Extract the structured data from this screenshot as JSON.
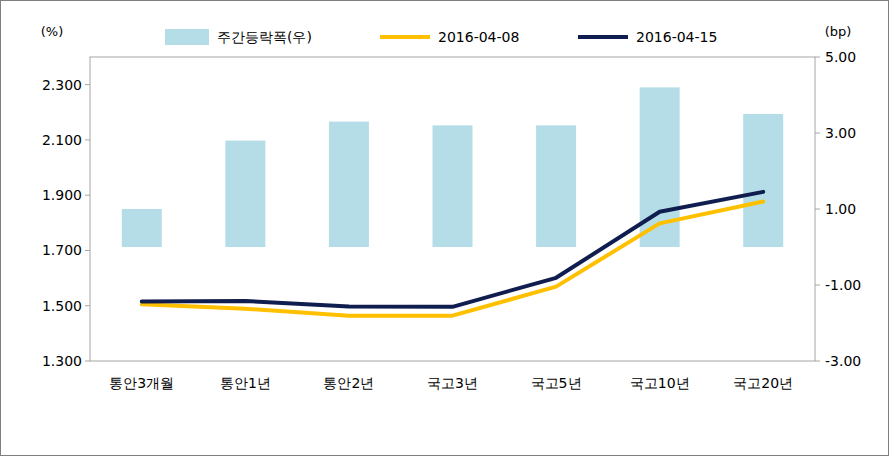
{
  "chart_data": {
    "type": "bar",
    "ylabel": "(%)",
    "y2label": "(bp)",
    "categories": [
      "통안3개월",
      "통안1년",
      "통안2년",
      "국고3년",
      "국고5년",
      "국고10년",
      "국고20년"
    ],
    "series": [
      {
        "name": "주간등락폭(우)",
        "type": "bar",
        "axis": "y2",
        "color": "#b4dde8",
        "values": [
          1.0,
          2.8,
          3.3,
          3.2,
          3.2,
          4.2,
          3.5
        ]
      },
      {
        "name": "2016-04-08",
        "type": "line",
        "color": "#ffc000",
        "values": [
          1.505,
          1.489,
          1.464,
          1.464,
          1.569,
          1.798,
          1.877
        ]
      },
      {
        "name": "2016-04-15",
        "type": "line",
        "color": "#0f1e4f",
        "values": [
          1.515,
          1.517,
          1.497,
          1.496,
          1.601,
          1.84,
          1.912
        ]
      }
    ],
    "ylim": [
      1.3,
      2.4
    ],
    "yticks": [
      {
        "value": 1.3,
        "label": "1.300"
      },
      {
        "value": 1.5,
        "label": "1.500"
      },
      {
        "value": 1.7,
        "label": "1.700"
      },
      {
        "value": 1.9,
        "label": "1.900"
      },
      {
        "value": 2.1,
        "label": "2.100"
      },
      {
        "value": 2.3,
        "label": "2.300"
      }
    ],
    "y2lim": [
      -3,
      5
    ],
    "y2ticks": [
      {
        "value": -3,
        "label": "-3.00"
      },
      {
        "value": -1,
        "label": "-1.00"
      },
      {
        "value": 1,
        "label": "1.00"
      },
      {
        "value": 3,
        "label": "3.00"
      },
      {
        "value": 5,
        "label": "5.00"
      }
    ],
    "grid": false,
    "legend": "top"
  }
}
